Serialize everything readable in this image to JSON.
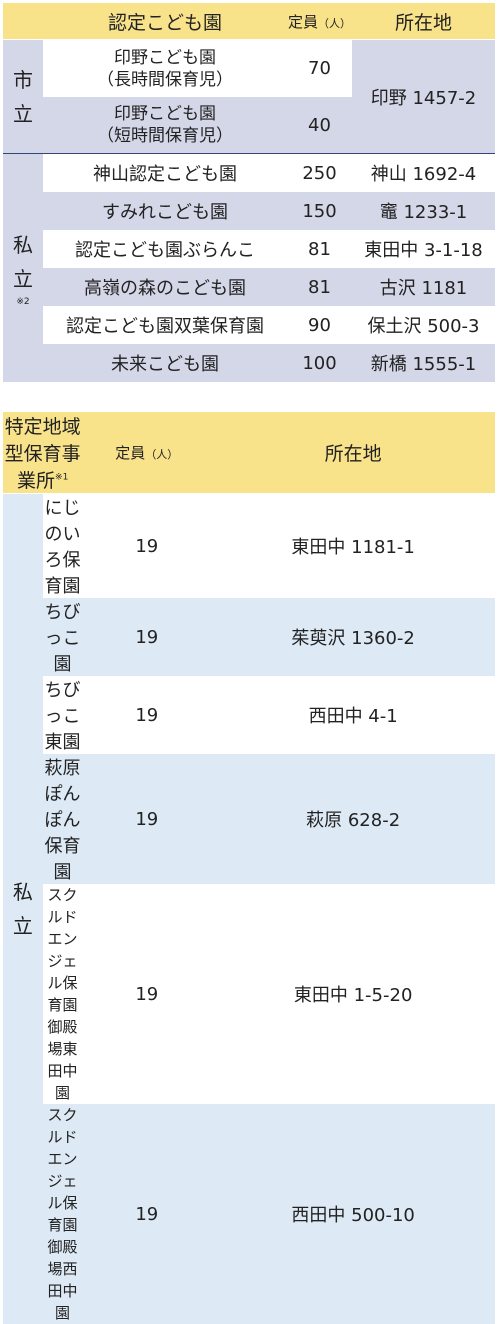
{
  "table1": {
    "header": {
      "name": "認定こども園",
      "capacity": "定員",
      "capacity_unit": "（人）",
      "location": "所在地"
    },
    "public_group": "市\n立",
    "public_rows": [
      {
        "name_line1": "印野こども園",
        "name_line2": "（長時間保育児）",
        "capacity": "70"
      },
      {
        "name_line1": "印野こども園",
        "name_line2": "（短時間保育児）",
        "capacity": "40"
      }
    ],
    "public_location": "印野 1457-2",
    "private_group": "私\n立",
    "private_note": "※2",
    "private_rows": [
      {
        "name": "神山認定こども園",
        "capacity": "250",
        "location": "神山 1692-4"
      },
      {
        "name": "すみれこども園",
        "capacity": "150",
        "location": "竈 1233-1"
      },
      {
        "name": "認定こども園ぶらんこ",
        "capacity": "81",
        "location": "東田中 3-1-18"
      },
      {
        "name": "高嶺の森のこども園",
        "capacity": "81",
        "location": "古沢 1181"
      },
      {
        "name": "認定こども園双葉保育園",
        "capacity": "90",
        "location": "保土沢 500-3"
      },
      {
        "name": "未来こども園",
        "capacity": "100",
        "location": "新橋 1555-1"
      }
    ]
  },
  "table2": {
    "header": {
      "name": "特定地域型保育事業所",
      "name_note": "※1",
      "capacity": "定員",
      "capacity_unit": "（人）",
      "location": "所在地"
    },
    "private_group": "私\n立",
    "rows": [
      {
        "name_line1": "にじのいろ保育園",
        "name_line2": "",
        "capacity": "19",
        "location": "東田中 1181-1"
      },
      {
        "name_line1": "ちびっこ園",
        "name_line2": "",
        "capacity": "19",
        "location": "茱萸沢 1360-2"
      },
      {
        "name_line1": "ちびっこ東園",
        "name_line2": "",
        "capacity": "19",
        "location": "西田中 4-1"
      },
      {
        "name_line1": "萩原ぽんぽん保育園",
        "name_line2": "",
        "capacity": "19",
        "location": "萩原 628-2"
      },
      {
        "name_line1": "スクルドエンジェル保育園",
        "name_line2": "御殿場東田中園",
        "capacity": "19",
        "location": "東田中 1-5-20"
      },
      {
        "name_line1": "スクルドエンジェル保育園",
        "name_line2": "御殿場西田中園",
        "capacity": "19",
        "location": "西田中 500-10"
      }
    ]
  }
}
